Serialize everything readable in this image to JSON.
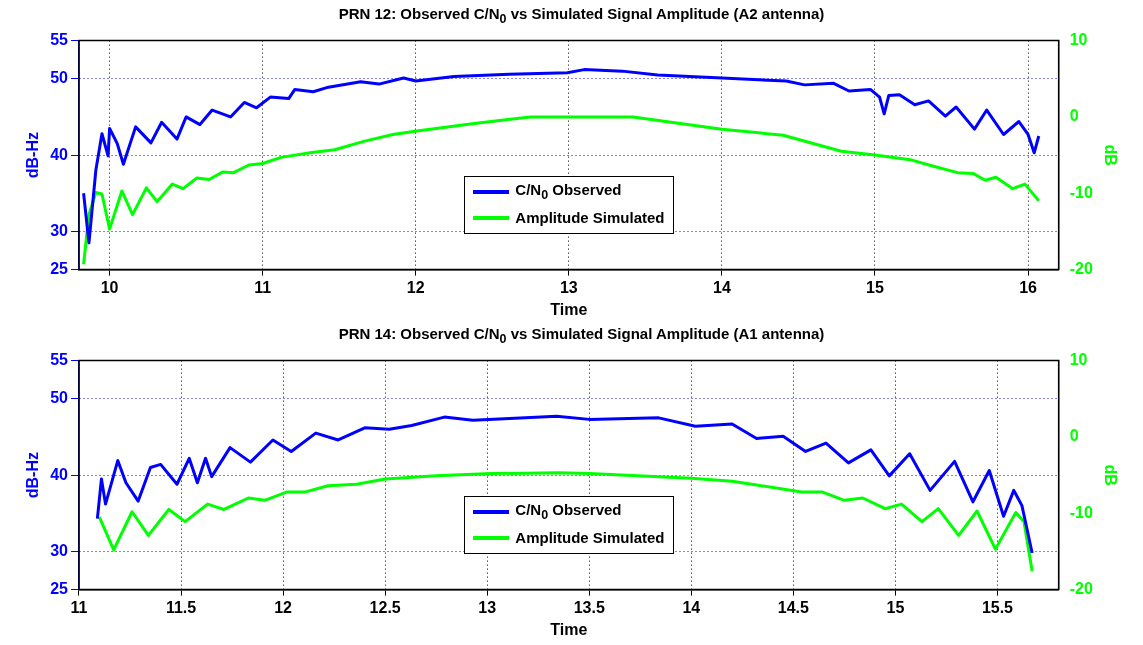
{
  "chart_data": [
    {
      "type": "line",
      "title": "PRN 12: Observed C/N$_{0}$ vs Simulated Signal Amplitude (A2 antenna)",
      "xlabel": "Time",
      "ylabel": "dB-Hz",
      "y2label": "dB",
      "xlim": [
        9.8,
        16.2
      ],
      "xticks": [
        10,
        11,
        12,
        13,
        14,
        15,
        16
      ],
      "ylim": [
        25,
        55
      ],
      "yticks": [
        25,
        30,
        40,
        50,
        55
      ],
      "y2lim": [
        -20,
        10
      ],
      "y2ticks": [
        -20,
        -10,
        0,
        10
      ],
      "grid": true,
      "legend": "bottom",
      "line_style": "solid",
      "series": [
        {
          "name": "C/N$_{0}$ Observed",
          "color": "#0000ff",
          "x": [
            9.83,
            9.865,
            9.91,
            9.95,
            9.99,
            10.0,
            10.05,
            10.09,
            10.17,
            10.27,
            10.34,
            10.44,
            10.5,
            10.59,
            10.67,
            10.79,
            10.88,
            10.96,
            11.05,
            11.17,
            11.21,
            11.33,
            11.43,
            11.64,
            11.76,
            11.92,
            12.0,
            12.25,
            12.61,
            12.99,
            13.1,
            13.35,
            13.58,
            14.0,
            14.42,
            14.54,
            14.73,
            14.83,
            14.97,
            15.03,
            15.06,
            15.09,
            15.16,
            15.26,
            15.35,
            15.46,
            15.53,
            15.65,
            15.73,
            15.84,
            15.94,
            16.0,
            16.04,
            16.07
          ],
          "values": [
            35,
            28.5,
            38,
            42.8,
            39.9,
            43.5,
            41.5,
            38.8,
            43.7,
            41.6,
            44.3,
            42.1,
            45,
            44,
            45.9,
            45,
            46.9,
            46.2,
            47.6,
            47.4,
            48.6,
            48.3,
            48.9,
            49.6,
            49.3,
            50.1,
            49.7,
            50.3,
            50.6,
            50.8,
            51.2,
            51,
            50.5,
            50.1,
            49.7,
            49.2,
            49.4,
            48.4,
            48.6,
            47.6,
            45.4,
            47.8,
            47.9,
            46.6,
            47.1,
            45.1,
            46.3,
            43.4,
            45.9,
            42.7,
            44.4,
            42.7,
            40.3,
            42.5
          ]
        },
        {
          "name": "Amplitude Simulated",
          "color": "#00ff00",
          "axis": "y2",
          "x": [
            9.83,
            9.865,
            9.91,
            9.95,
            10.0,
            10.08,
            10.15,
            10.24,
            10.31,
            10.41,
            10.48,
            10.57,
            10.65,
            10.74,
            10.81,
            10.91,
            11.0,
            11.12,
            11.31,
            11.47,
            11.66,
            11.85,
            12.02,
            12.37,
            12.75,
            13.0,
            13.42,
            14.0,
            14.4,
            14.78,
            15.0,
            15.23,
            15.37,
            15.54,
            15.64,
            15.72,
            15.79,
            15.9,
            15.98,
            16.07
          ],
          "values": [
            -19.3,
            -12.8,
            -9.9,
            -10.1,
            -14.7,
            -9.7,
            -12.8,
            -9.3,
            -11.1,
            -8.8,
            -9.4,
            -8,
            -8.2,
            -7.2,
            -7.3,
            -6.3,
            -6.1,
            -5.3,
            -4.7,
            -4.3,
            -3.2,
            -2.3,
            -1.8,
            -0.9,
            0,
            0,
            0,
            -1.6,
            -2.4,
            -4.5,
            -5,
            -5.6,
            -6.4,
            -7.3,
            -7.4,
            -8.3,
            -7.9,
            -9.4,
            -8.8,
            -11
          ]
        }
      ]
    },
    {
      "type": "line",
      "title": "PRN 14: Observed C/N$_{0}$ vs Simulated Signal Amplitude (A1 antenna)",
      "xlabel": "Time",
      "ylabel": "dB-Hz",
      "y2label": "dB",
      "xlim": [
        11,
        15.8
      ],
      "xticks": [
        11,
        11.5,
        12,
        12.5,
        13,
        13.5,
        14,
        14.5,
        15,
        15.5
      ],
      "ylim": [
        25,
        55
      ],
      "yticks": [
        25,
        30,
        40,
        50,
        55
      ],
      "y2lim": [
        -20,
        10
      ],
      "y2ticks": [
        -20,
        -10,
        0,
        10
      ],
      "grid": true,
      "legend": "bottom",
      "line_style": "solid",
      "series": [
        {
          "name": "C/N$_{0}$ Observed",
          "color": "#0000ff",
          "x": [
            11.09,
            11.11,
            11.13,
            11.19,
            11.23,
            11.29,
            11.35,
            11.4,
            11.48,
            11.54,
            11.58,
            11.62,
            11.65,
            11.74,
            11.84,
            11.95,
            12.04,
            12.16,
            12.27,
            12.4,
            12.52,
            12.63,
            12.79,
            12.93,
            13.11,
            13.34,
            13.5,
            13.84,
            14.02,
            14.2,
            14.32,
            14.45,
            14.56,
            14.66,
            14.77,
            14.88,
            14.97,
            15.07,
            15.17,
            15.29,
            15.38,
            15.46,
            15.53,
            15.58,
            15.62,
            15.67
          ],
          "values": [
            34.3,
            39.5,
            36.2,
            41.9,
            39,
            36.6,
            41,
            41.4,
            38.8,
            42.2,
            39,
            42.2,
            39.8,
            43.6,
            41.7,
            44.6,
            43.1,
            45.5,
            44.6,
            46.2,
            46,
            46.5,
            47.6,
            47.2,
            47.4,
            47.7,
            47.3,
            47.5,
            46.4,
            46.7,
            44.8,
            45.1,
            43.1,
            44.2,
            41.6,
            43.3,
            39.9,
            42.8,
            38,
            41.8,
            36.5,
            40.6,
            34.6,
            38,
            36,
            29.8
          ]
        },
        {
          "name": "Amplitude Simulated",
          "color": "#00ff00",
          "axis": "y2",
          "x": [
            11.1,
            11.17,
            11.26,
            11.34,
            11.44,
            11.52,
            11.63,
            11.71,
            11.83,
            11.91,
            12.02,
            12.11,
            12.22,
            12.36,
            12.5,
            12.75,
            13.02,
            13.35,
            13.5,
            14.0,
            14.2,
            14.32,
            14.54,
            14.64,
            14.75,
            14.84,
            14.95,
            15.03,
            15.13,
            15.21,
            15.31,
            15.4,
            15.49,
            15.59,
            15.63,
            15.67
          ],
          "values": [
            -10.5,
            -14.8,
            -9.8,
            -12.9,
            -9.5,
            -11.1,
            -8.8,
            -9.5,
            -8,
            -8.3,
            -7.2,
            -7.2,
            -6.4,
            -6.2,
            -5.5,
            -5.1,
            -4.8,
            -4.7,
            -4.8,
            -5.4,
            -5.8,
            -6.3,
            -7.2,
            -7.2,
            -8.3,
            -8,
            -9.4,
            -8.8,
            -11.1,
            -9.4,
            -12.9,
            -9.7,
            -14.7,
            -9.9,
            -11.1,
            -17.6
          ]
        }
      ]
    }
  ]
}
